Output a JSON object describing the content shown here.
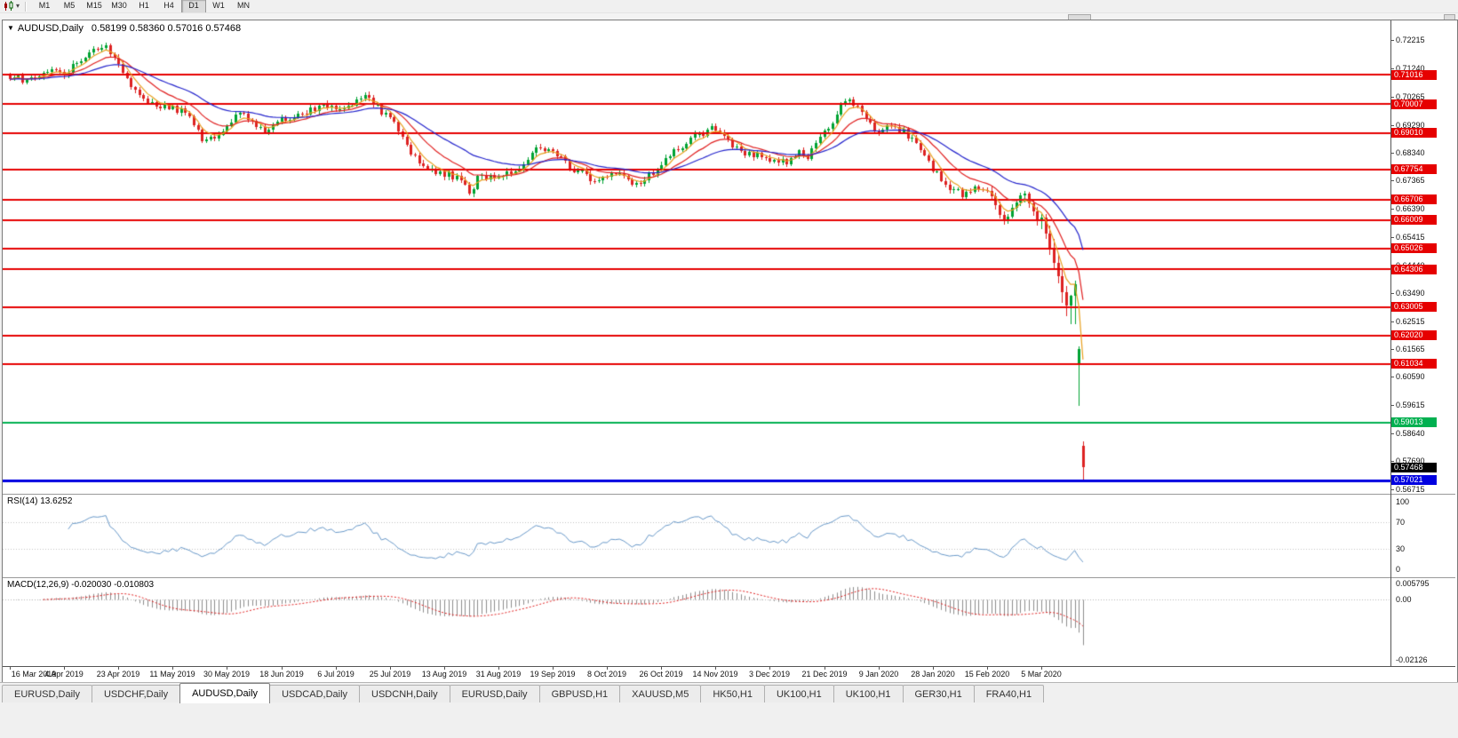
{
  "colors": {
    "up": "#00a333",
    "down": "#dd2222",
    "ma_fast": "#e8a020",
    "ma_mid": "#e02020",
    "ma_slow": "#2525cc",
    "hline_red": "#e60000",
    "hline_green": "#00b050",
    "hline_blue": "#0000e0",
    "rsi_line": "#6898c8",
    "rsi_level": "#c0c0c0",
    "macd_hist": "#8c8c8c",
    "macd_signal": "#e02020",
    "current_tag_bg": "#000000"
  },
  "toolbar": {
    "chart_type_icon": "candlestick-chart",
    "dropdown_icon": "▾",
    "timeframes": [
      "M1",
      "M5",
      "M15",
      "M30",
      "H1",
      "H4",
      "D1",
      "W1",
      "MN"
    ],
    "active_timeframe": "D1"
  },
  "chart": {
    "expand_icon": "▼",
    "title": "AUDUSD,Daily",
    "ohlc": "0.58199 0.58360 0.57016 0.57468"
  },
  "indicators": {
    "rsi_label": "RSI(14) 13.6252",
    "rsi_axis": [
      "100",
      "70",
      "30",
      "0"
    ],
    "macd_label": "MACD(12,26,9) -0.020030 -0.010803",
    "macd_axis": [
      "0.005795",
      "0.00",
      "-0.02126"
    ]
  },
  "tabs": [
    "EURUSD,Daily",
    "USDCHF,Daily",
    "AUDUSD,Daily",
    "USDCAD,Daily",
    "USDCNH,Daily",
    "EURUSD,Daily",
    "GBPUSD,H1",
    "XAUUSD,M5",
    "HK50,H1",
    "UK100,H1",
    "UK100,H1",
    "GER30,H1",
    "FRA40,H1"
  ],
  "active_tab_index": 2,
  "chart_data": {
    "type": "candlestick",
    "symbol": "AUDUSD",
    "timeframe": "Daily",
    "ohlc_current": {
      "open": 0.58199,
      "high": 0.5836,
      "low": 0.57016,
      "close": 0.57468
    },
    "y_ticks": [
      0.72215,
      0.7124,
      0.70265,
      0.6929,
      0.6834,
      0.67365,
      0.6639,
      0.65415,
      0.6444,
      0.6349,
      0.62515,
      0.61565,
      0.6059,
      0.59615,
      0.5864,
      0.5769,
      0.56715
    ],
    "y_range": [
      0.5655,
      0.729
    ],
    "x_tick_labels": [
      "16 Mar 2019",
      "4 Apr 2019",
      "23 Apr 2019",
      "11 May 2019",
      "30 May 2019",
      "18 Jun 2019",
      "6 Jul 2019",
      "25 Jul 2019",
      "13 Aug 2019",
      "31 Aug 2019",
      "19 Sep 2019",
      "8 Oct 2019",
      "26 Oct 2019",
      "14 Nov 2019",
      "3 Dec 2019",
      "21 Dec 2019",
      "9 Jan 2020",
      "28 Jan 2020",
      "15 Feb 2020",
      "5 Mar 2020"
    ],
    "bars_per_xtick": 13,
    "candle_count": 258,
    "noise_seed": 97,
    "price_path_anchors": [
      [
        0,
        0.71
      ],
      [
        3,
        0.7085
      ],
      [
        6,
        0.7092
      ],
      [
        9,
        0.7118
      ],
      [
        12,
        0.7102
      ],
      [
        15,
        0.7128
      ],
      [
        18,
        0.7155
      ],
      [
        21,
        0.719
      ],
      [
        23,
        0.72
      ],
      [
        25,
        0.7162
      ],
      [
        27,
        0.7118
      ],
      [
        30,
        0.705
      ],
      [
        33,
        0.7008
      ],
      [
        36,
        0.6998
      ],
      [
        39,
        0.699
      ],
      [
        42,
        0.6968
      ],
      [
        45,
        0.6902
      ],
      [
        47,
        0.6868
      ],
      [
        50,
        0.6898
      ],
      [
        53,
        0.6938
      ],
      [
        55,
        0.6972
      ],
      [
        58,
        0.6948
      ],
      [
        61,
        0.6906
      ],
      [
        63,
        0.6928
      ],
      [
        66,
        0.6952
      ],
      [
        70,
        0.6972
      ],
      [
        74,
        0.6988
      ],
      [
        78,
        0.6992
      ],
      [
        82,
        0.7
      ],
      [
        85,
        0.703
      ],
      [
        87,
        0.7006
      ],
      [
        90,
        0.6962
      ],
      [
        93,
        0.6918
      ],
      [
        96,
        0.683
      ],
      [
        99,
        0.6786
      ],
      [
        102,
        0.6768
      ],
      [
        105,
        0.6758
      ],
      [
        108,
        0.6742
      ],
      [
        110,
        0.6696
      ],
      [
        112,
        0.6742
      ],
      [
        115,
        0.6752
      ],
      [
        119,
        0.6762
      ],
      [
        123,
        0.6788
      ],
      [
        126,
        0.6846
      ],
      [
        129,
        0.6852
      ],
      [
        132,
        0.6808
      ],
      [
        135,
        0.6778
      ],
      [
        138,
        0.6752
      ],
      [
        140,
        0.6722
      ],
      [
        143,
        0.6748
      ],
      [
        146,
        0.6762
      ],
      [
        149,
        0.6722
      ],
      [
        152,
        0.6742
      ],
      [
        155,
        0.6768
      ],
      [
        158,
        0.6825
      ],
      [
        161,
        0.6862
      ],
      [
        164,
        0.6886
      ],
      [
        167,
        0.6906
      ],
      [
        169,
        0.6922
      ],
      [
        172,
        0.6872
      ],
      [
        175,
        0.6842
      ],
      [
        178,
        0.6822
      ],
      [
        182,
        0.6812
      ],
      [
        186,
        0.6802
      ],
      [
        189,
        0.6838
      ],
      [
        191,
        0.6818
      ],
      [
        193,
        0.6856
      ],
      [
        196,
        0.6922
      ],
      [
        199,
        0.6988
      ],
      [
        201,
        0.7018
      ],
      [
        203,
        0.6996
      ],
      [
        205,
        0.6952
      ],
      [
        208,
        0.6906
      ],
      [
        211,
        0.6922
      ],
      [
        214,
        0.6906
      ],
      [
        216,
        0.6878
      ],
      [
        218,
        0.6846
      ],
      [
        220,
        0.6792
      ],
      [
        222,
        0.6758
      ],
      [
        224,
        0.6728
      ],
      [
        226,
        0.6702
      ],
      [
        228,
        0.6688
      ],
      [
        230,
        0.6702
      ],
      [
        232,
        0.6712
      ],
      [
        234,
        0.6704
      ]
    ],
    "tail_candles_ohlc": [
      [
        0.6702,
        0.6718,
        0.6668,
        0.6682
      ],
      [
        0.6682,
        0.6695,
        0.6638,
        0.6652
      ],
      [
        0.6652,
        0.6665,
        0.6605,
        0.6618
      ],
      [
        0.6618,
        0.6632,
        0.6585,
        0.66
      ],
      [
        0.66,
        0.6622,
        0.6588,
        0.6612
      ],
      [
        0.6612,
        0.6655,
        0.6605,
        0.6642
      ],
      [
        0.6642,
        0.6672,
        0.6632,
        0.666
      ],
      [
        0.666,
        0.6695,
        0.6648,
        0.6685
      ],
      [
        0.6685,
        0.6702,
        0.666,
        0.6692
      ],
      [
        0.6692,
        0.6698,
        0.6642,
        0.6658
      ],
      [
        0.6658,
        0.667,
        0.6615,
        0.663
      ],
      [
        0.663,
        0.6645,
        0.6582,
        0.6598
      ],
      [
        0.6598,
        0.6622,
        0.6568,
        0.661
      ],
      [
        0.661,
        0.662,
        0.6535,
        0.6555
      ],
      [
        0.6555,
        0.6582,
        0.648,
        0.6505
      ],
      [
        0.6505,
        0.6535,
        0.643,
        0.6452
      ],
      [
        0.6452,
        0.6482,
        0.6382,
        0.6408
      ],
      [
        0.6408,
        0.6428,
        0.6315,
        0.6352
      ],
      [
        0.6352,
        0.6372,
        0.6268,
        0.6305
      ],
      [
        0.6305,
        0.6342,
        0.624,
        0.634
      ],
      [
        0.634,
        0.639,
        0.624,
        0.638
      ],
      [
        0.61,
        0.6165,
        0.5958,
        0.6155
      ],
      [
        0.58199,
        0.5836,
        0.57016,
        0.57468
      ]
    ],
    "hlines": [
      {
        "value": 0.71016,
        "color": "red"
      },
      {
        "value": 0.70007,
        "color": "red"
      },
      {
        "value": 0.6901,
        "color": "red"
      },
      {
        "value": 0.67754,
        "color": "red"
      },
      {
        "value": 0.66706,
        "color": "red"
      },
      {
        "value": 0.66009,
        "color": "red"
      },
      {
        "value": 0.65026,
        "color": "red"
      },
      {
        "value": 0.64306,
        "color": "red"
      },
      {
        "value": 0.63005,
        "color": "red"
      },
      {
        "value": 0.6202,
        "color": "red"
      },
      {
        "value": 0.61034,
        "color": "red"
      },
      {
        "value": 0.59013,
        "color": "green"
      },
      {
        "value": 0.57021,
        "color": "blue"
      }
    ],
    "moving_averages": [
      {
        "name": "fast-ma",
        "period": 5,
        "color_key": "ma_fast"
      },
      {
        "name": "medium-ma",
        "period": 13,
        "color_key": "ma_mid"
      },
      {
        "name": "slow-ma",
        "period": 30,
        "color_key": "ma_slow"
      }
    ],
    "rsi": {
      "period": 14,
      "current": 13.6252,
      "levels": [
        70,
        30
      ],
      "scale_marks": [
        100,
        70,
        30,
        0
      ]
    },
    "macd": {
      "fast": 12,
      "slow": 26,
      "signal": 9,
      "current_macd": -0.02003,
      "current_signal": -0.010803,
      "y_range": [
        -0.02126,
        0.005795
      ]
    }
  }
}
